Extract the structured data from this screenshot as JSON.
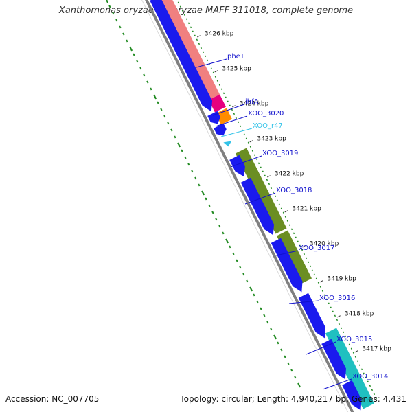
{
  "title": "Xanthomonas oryzae pv. oryzae MAFF 311018, complete genome",
  "accession_text": "Accession: NC_007705",
  "topology_text": "Topology: circular; Length: 4,940,217 bp; Genes: 4,431",
  "colors": {
    "gc_skew": "#228B22",
    "backbone_dark": "#808080",
    "backbone_light": "#d9d9d9",
    "label_blue": "#1010cc",
    "label_cyan": "#33c3e8",
    "reverse_cds": "#1a1aee"
  },
  "ticks": [
    {
      "label": "3426 kbp"
    },
    {
      "label": "3425 kbp"
    },
    {
      "label": "3424 kbp"
    },
    {
      "label": "3423 kbp"
    },
    {
      "label": "3422 kbp"
    },
    {
      "label": "3421 kbp"
    },
    {
      "label": "3420 kbp"
    },
    {
      "label": "3419 kbp"
    },
    {
      "label": "3418 kbp"
    },
    {
      "label": "3417 kbp"
    }
  ],
  "genes": [
    {
      "name": "pheT",
      "color": "blue",
      "feature": "#f08080"
    },
    {
      "name": "ihfA",
      "color": "blue",
      "feature": "#e6007e"
    },
    {
      "name": "XOO_3020",
      "color": "blue",
      "feature": "#ff8c00"
    },
    {
      "name": "XOO_r47",
      "color": "cyan",
      "feature": "#33c3e8"
    },
    {
      "name": "XOO_3019",
      "color": "blue",
      "feature": "#6b8e23"
    },
    {
      "name": "XOO_3018",
      "color": "blue",
      "feature": "#6b8e23"
    },
    {
      "name": "XOO_3017",
      "color": "blue",
      "feature": "#6b8e23"
    },
    {
      "name": "XOO_3016",
      "color": "blue",
      "feature": "#1a1aee"
    },
    {
      "name": "XOO_3015",
      "color": "blue",
      "feature": "#20c0c0"
    },
    {
      "name": "XOO_3014",
      "color": "blue",
      "feature": "#20c0c0"
    }
  ]
}
